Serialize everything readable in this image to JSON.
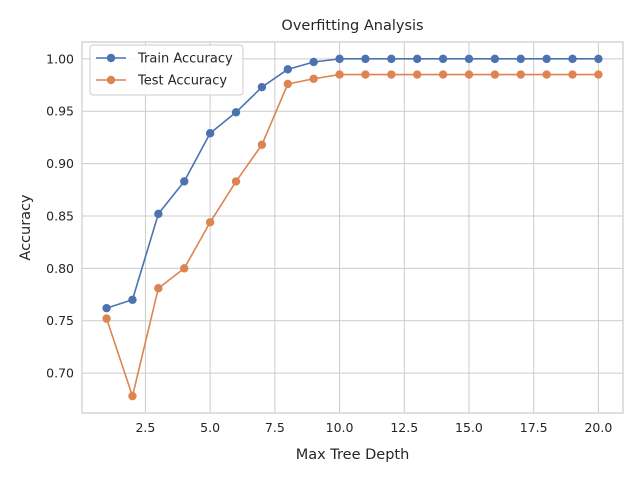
{
  "chart_data": {
    "type": "line",
    "title": "Overfitting Analysis",
    "xlabel": "Max Tree Depth",
    "ylabel": "Accuracy",
    "x": [
      1,
      2,
      3,
      4,
      5,
      6,
      7,
      8,
      9,
      10,
      11,
      12,
      13,
      14,
      15,
      16,
      17,
      18,
      19,
      20
    ],
    "series": [
      {
        "name": "Train Accuracy",
        "color": "#4c72b0",
        "marker": "circle",
        "values": [
          0.762,
          0.77,
          0.852,
          0.883,
          0.929,
          0.949,
          0.973,
          0.99,
          0.997,
          1.0,
          1.0,
          1.0,
          1.0,
          1.0,
          1.0,
          1.0,
          1.0,
          1.0,
          1.0,
          1.0
        ]
      },
      {
        "name": "Test Accuracy",
        "color": "#dd8452",
        "marker": "circle",
        "values": [
          0.752,
          0.678,
          0.781,
          0.8,
          0.844,
          0.883,
          0.918,
          0.976,
          0.981,
          0.985,
          0.985,
          0.985,
          0.985,
          0.985,
          0.985,
          0.985,
          0.985,
          0.985,
          0.985,
          0.985
        ]
      }
    ],
    "xlim": [
      0.05,
      20.95
    ],
    "ylim": [
      0.6619,
      1.0161
    ],
    "xticks": [
      2.5,
      5.0,
      7.5,
      10.0,
      12.5,
      15.0,
      17.5,
      20.0
    ],
    "xtick_labels": [
      "2.5",
      "5.0",
      "7.5",
      "10.0",
      "12.5",
      "15.0",
      "17.5",
      "20.0"
    ],
    "yticks": [
      0.7,
      0.75,
      0.8,
      0.85,
      0.9,
      0.95,
      1.0
    ],
    "ytick_labels": [
      "0.70",
      "0.75",
      "0.80",
      "0.85",
      "0.90",
      "0.95",
      "1.00"
    ],
    "grid": true,
    "legend_position": "top-left"
  }
}
